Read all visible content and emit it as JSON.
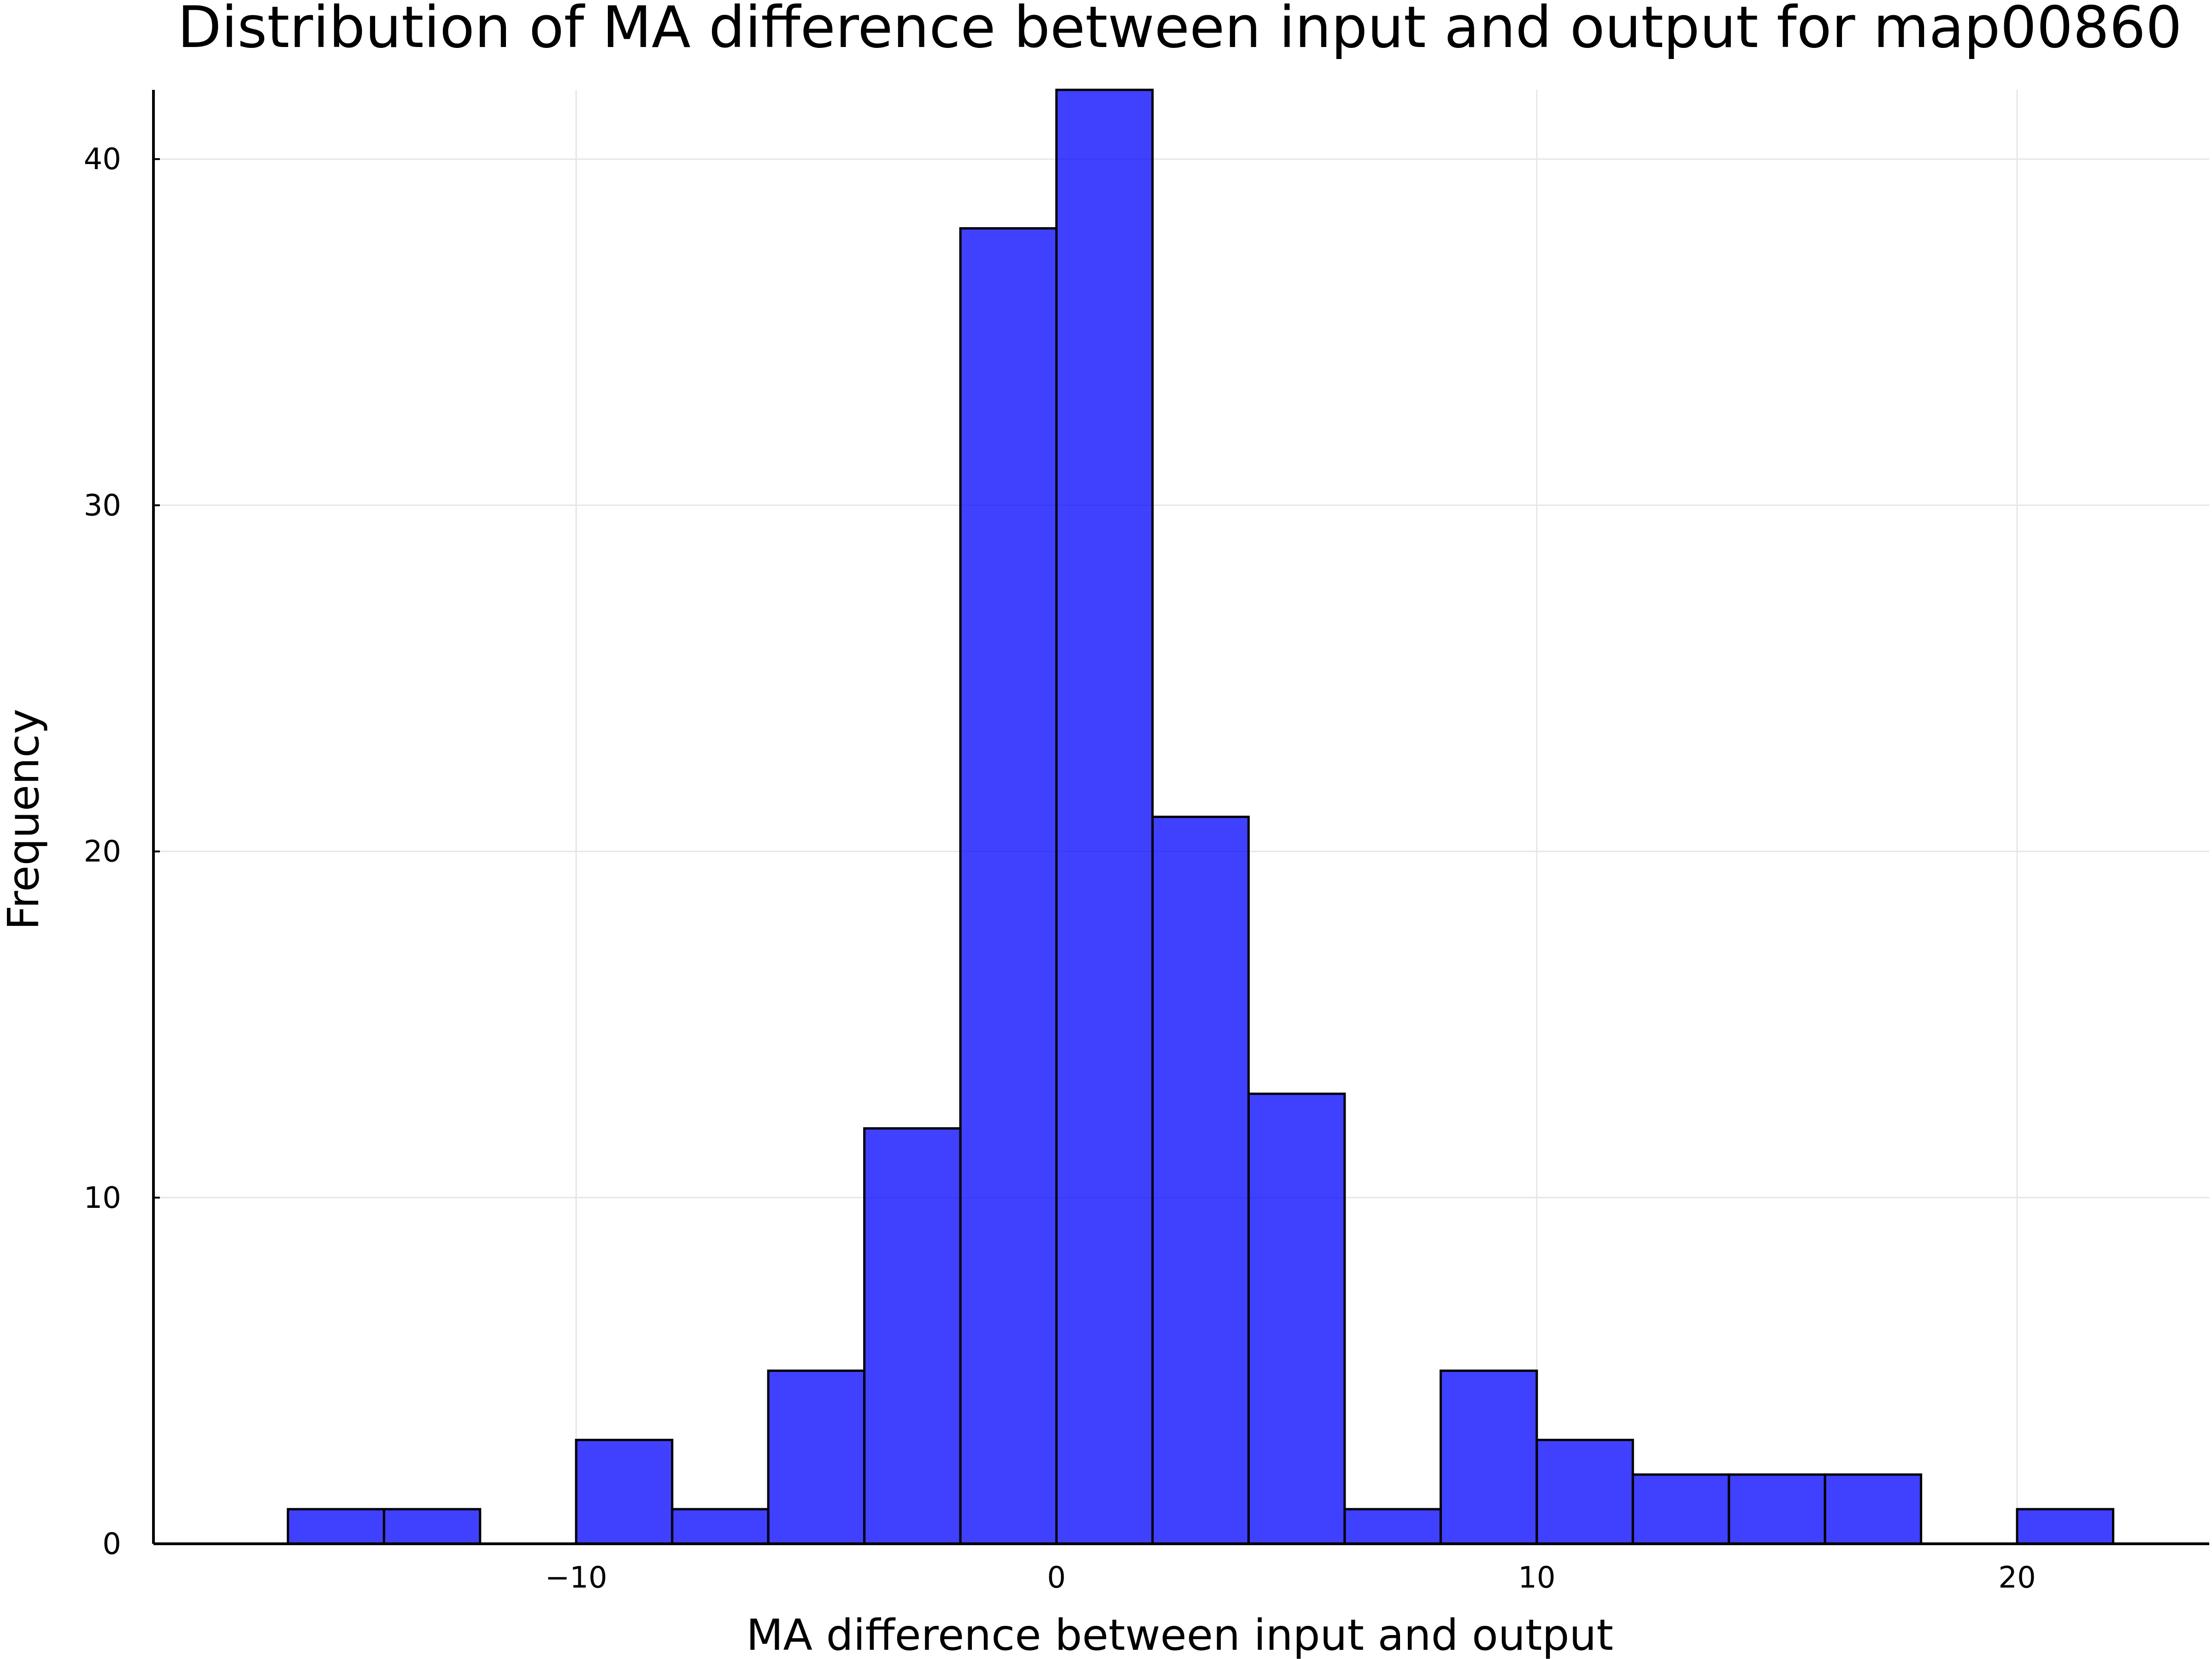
{
  "chart_data": {
    "type": "bar",
    "title": "Distribution of MA difference between input and output for map00860",
    "xlabel": "MA difference between input and output",
    "ylabel": "Frequency",
    "bar_color": "#0000ff",
    "bar_opacity": 0.75,
    "bin_width": 2,
    "xlim": [
      -18.8,
      24.0
    ],
    "ylim": [
      0,
      42
    ],
    "xticks": [
      -10,
      0,
      10,
      20
    ],
    "xtick_labels": [
      "−10",
      "0",
      "10",
      "20"
    ],
    "yticks": [
      0,
      10,
      20,
      30,
      40
    ],
    "ytick_labels": [
      "0",
      "10",
      "20",
      "30",
      "40"
    ],
    "grid": true,
    "legend": "none",
    "bins": [
      {
        "start": -16,
        "end": -14,
        "count": 1
      },
      {
        "start": -14,
        "end": -12,
        "count": 1
      },
      {
        "start": -12,
        "end": -10,
        "count": 0
      },
      {
        "start": -10,
        "end": -8,
        "count": 3
      },
      {
        "start": -8,
        "end": -6,
        "count": 1
      },
      {
        "start": -6,
        "end": -4,
        "count": 5
      },
      {
        "start": -4,
        "end": -2,
        "count": 12
      },
      {
        "start": -2,
        "end": 0,
        "count": 38
      },
      {
        "start": 0,
        "end": 2,
        "count": 42
      },
      {
        "start": 2,
        "end": 4,
        "count": 21
      },
      {
        "start": 4,
        "end": 6,
        "count": 13
      },
      {
        "start": 6,
        "end": 8,
        "count": 1
      },
      {
        "start": 8,
        "end": 10,
        "count": 5
      },
      {
        "start": 10,
        "end": 12,
        "count": 3
      },
      {
        "start": 12,
        "end": 14,
        "count": 2
      },
      {
        "start": 14,
        "end": 16,
        "count": 2
      },
      {
        "start": 16,
        "end": 18,
        "count": 2
      },
      {
        "start": 18,
        "end": 20,
        "count": 0
      },
      {
        "start": 20,
        "end": 22,
        "count": 1
      }
    ]
  }
}
